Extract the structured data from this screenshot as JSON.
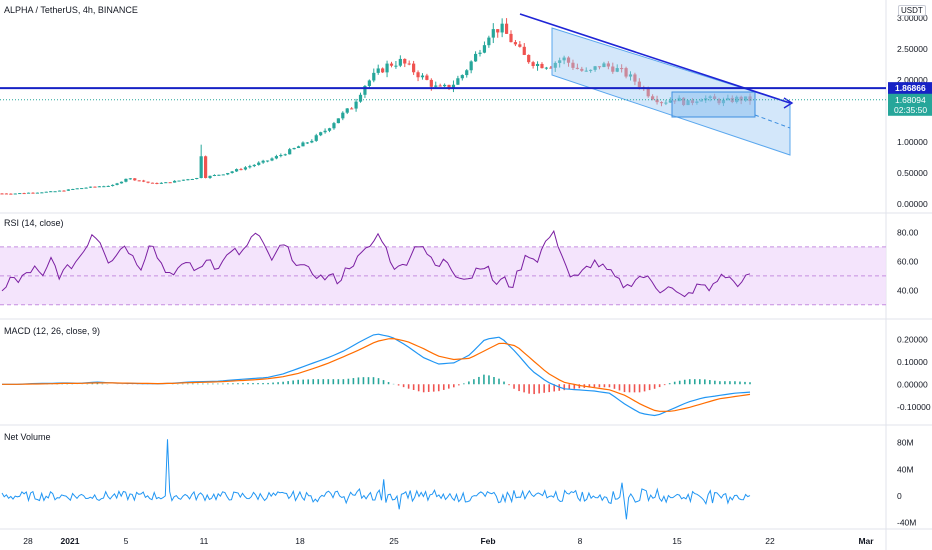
{
  "header": {
    "symbol_line": "ALPHA / TetherUS, 4h, BINANCE",
    "currency": "USDT"
  },
  "panes": {
    "rsi_label": "RSI (14, close)",
    "macd_label": "MACD (12, 26, close, 9)",
    "volume_label": "Net Volume"
  },
  "price_tags": {
    "resistance": "1.86866",
    "last_price": "1.68094",
    "countdown": "02:35:50"
  },
  "colors": {
    "up": "#26a69a",
    "down": "#ef5350",
    "trend_line": "#1f24d6",
    "horizontal_line": "#1722c5",
    "channel_fill": "#9ec9f3",
    "rsi_line": "#7b1fa2",
    "rsi_band": "#f1ddfb",
    "macd_line": "#2196f3",
    "signal_line": "#ff6d00",
    "hist_up": "#26a69a",
    "hist_down": "#ef5350",
    "volume_line": "#2196f3",
    "last_price_bg": "#26a69a",
    "resistance_bg": "#1722c5"
  },
  "chart_data": [
    {
      "type": "candlestick",
      "pane": "price",
      "y_ticks": [
        "3.00000",
        "2.50000",
        "2.00000",
        "1.50000",
        "1.00000",
        "0.50000",
        "0.00000"
      ],
      "ylim": [
        0,
        3.0
      ],
      "x_ticks": [
        "28",
        "2021",
        "5",
        "11",
        "18",
        "25",
        "Feb",
        "8",
        "15",
        "22",
        "Mar"
      ],
      "resistance_level": 1.86866,
      "last_price": 1.68094,
      "trend": [
        0.17,
        0.17,
        0.18,
        0.19,
        0.2,
        0.22,
        0.25,
        0.27,
        0.29,
        0.3,
        0.42,
        0.38,
        0.33,
        0.34,
        0.37,
        0.41,
        0.42,
        0.46,
        0.5,
        0.56,
        0.62,
        0.68,
        0.76,
        0.85,
        0.95,
        1.05,
        1.2,
        1.4,
        1.55,
        1.9,
        2.1,
        2.25,
        2.3,
        2.15,
        2.0,
        1.85,
        1.9,
        2.1,
        2.4,
        2.75,
        2.85,
        2.6,
        2.35,
        2.25,
        2.25,
        2.35,
        2.2,
        2.1,
        2.25,
        2.2,
        2.1,
        1.95,
        1.75,
        1.65,
        1.7,
        1.62,
        1.72,
        1.68,
        1.65,
        1.7,
        1.68
      ]
    },
    {
      "type": "line",
      "pane": "rsi",
      "series": [
        {
          "name": "RSI (14, close)"
        }
      ],
      "y_ticks": [
        "80.00",
        "60.00",
        "40.00"
      ],
      "ylim": [
        25,
        90
      ],
      "bands": [
        30,
        70
      ],
      "values": [
        38,
        50,
        45,
        52,
        55,
        48,
        62,
        50,
        55,
        60,
        68,
        80,
        74,
        60,
        66,
        72,
        62,
        56,
        75,
        62,
        54,
        48,
        60,
        58,
        52,
        64,
        56,
        60,
        70,
        62,
        74,
        80,
        68,
        60,
        72,
        66,
        58,
        54,
        52,
        48,
        50,
        46,
        56,
        60,
        66,
        72,
        80,
        64,
        54,
        58,
        68,
        74,
        62,
        55,
        62,
        52,
        50,
        48,
        58,
        56,
        44,
        48,
        42,
        55,
        66,
        60,
        72,
        80,
        68,
        50,
        48,
        55,
        60,
        56,
        52,
        46,
        42,
        48,
        50,
        46,
        40,
        44,
        38,
        34,
        40,
        44,
        40,
        48,
        50,
        46,
        44,
        52
      ]
    },
    {
      "type": "line",
      "pane": "macd",
      "series": [
        {
          "name": "MACD"
        },
        {
          "name": "Signal"
        }
      ],
      "y_ticks": [
        "0.20000",
        "0.10000",
        "0.00000",
        "-0.10000"
      ],
      "ylim": [
        -0.15,
        0.25
      ],
      "macd": [
        0,
        0,
        0.003,
        0.004,
        0.006,
        0.004,
        0.01,
        0.006,
        0.004,
        0.003,
        0.002,
        0.005,
        0.01,
        0.012,
        0.014,
        0.02,
        0.025,
        0.03,
        0.045,
        0.07,
        0.095,
        0.12,
        0.15,
        0.19,
        0.225,
        0.21,
        0.17,
        0.12,
        0.09,
        0.095,
        0.13,
        0.2,
        0.21,
        0.14,
        0.06,
        0.01,
        -0.02,
        -0.025,
        -0.03,
        -0.04,
        -0.09,
        -0.13,
        -0.14,
        -0.11,
        -0.08,
        -0.06,
        -0.05,
        -0.04,
        -0.035
      ],
      "signal": [
        0,
        0,
        0.001,
        0.002,
        0.004,
        0.004,
        0.006,
        0.006,
        0.005,
        0.004,
        0.003,
        0.004,
        0.007,
        0.009,
        0.011,
        0.015,
        0.019,
        0.024,
        0.033,
        0.048,
        0.07,
        0.095,
        0.125,
        0.155,
        0.19,
        0.205,
        0.19,
        0.16,
        0.125,
        0.11,
        0.115,
        0.15,
        0.185,
        0.17,
        0.11,
        0.05,
        0.01,
        -0.005,
        -0.015,
        -0.025,
        -0.05,
        -0.09,
        -0.12,
        -0.12,
        -0.105,
        -0.085,
        -0.065,
        -0.055,
        -0.045
      ]
    },
    {
      "type": "line",
      "pane": "net_volume",
      "series": [
        {
          "name": "Net Volume"
        }
      ],
      "y_ticks": [
        "80M",
        "40M",
        "0",
        "-40M"
      ],
      "ylim": [
        -45,
        90
      ],
      "spikes": {
        "0.22": 85,
        "0.51": 25,
        "0.53": -20,
        "0.83": 20,
        "0.835": -35
      }
    }
  ]
}
